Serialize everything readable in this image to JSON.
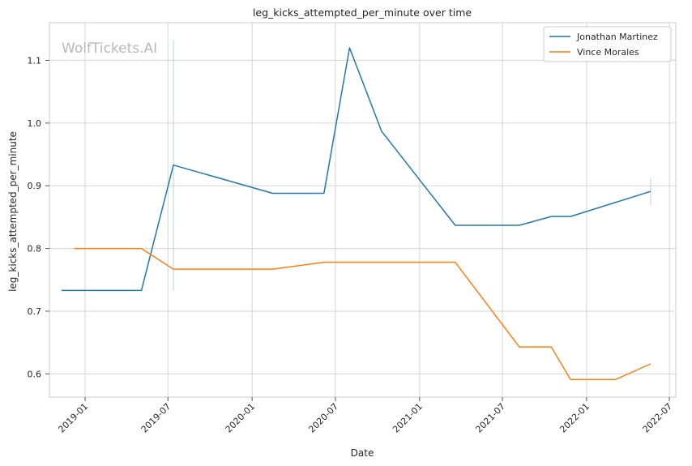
{
  "watermark": "WolfTickets.AI",
  "chart_data": {
    "type": "line",
    "title": "leg_kicks_attempted_per_minute over time",
    "xlabel": "Date",
    "ylabel": "leg_kicks_attempted_per_minute",
    "x_ticks": [
      "2019-01",
      "2019-07",
      "2020-01",
      "2020-07",
      "2021-01",
      "2021-07",
      "2022-01",
      "2022-07"
    ],
    "y_ticks": [
      0.6,
      0.7,
      0.8,
      0.9,
      1.0,
      1.1
    ],
    "xlim": [
      "2018-10-15",
      "2022-07-15"
    ],
    "ylim": [
      0.563,
      1.16
    ],
    "grid": true,
    "legend": "top-right",
    "series": [
      {
        "name": "Jonathan Martinez",
        "color": "#1f77b4",
        "points": [
          {
            "x": "2018-11-10",
            "y": 0.733
          },
          {
            "x": "2019-05-04",
            "y": 0.733
          },
          {
            "x": "2019-07-13",
            "y": 0.933
          },
          {
            "x": "2020-02-15",
            "y": 0.888
          },
          {
            "x": "2020-06-06",
            "y": 0.888
          },
          {
            "x": "2020-08-01",
            "y": 1.12
          },
          {
            "x": "2020-10-10",
            "y": 0.987
          },
          {
            "x": "2021-03-20",
            "y": 0.837
          },
          {
            "x": "2021-08-07",
            "y": 0.837
          },
          {
            "x": "2021-10-16",
            "y": 0.851
          },
          {
            "x": "2021-11-27",
            "y": 0.851
          },
          {
            "x": "2022-05-21",
            "y": 0.891
          }
        ]
      },
      {
        "name": "Vince Morales",
        "color": "#ff7f0e",
        "points": [
          {
            "x": "2018-12-08",
            "y": 0.8
          },
          {
            "x": "2019-05-04",
            "y": 0.8
          },
          {
            "x": "2019-07-13",
            "y": 0.767
          },
          {
            "x": "2020-02-15",
            "y": 0.767
          },
          {
            "x": "2020-06-06",
            "y": 0.778
          },
          {
            "x": "2021-03-20",
            "y": 0.778
          },
          {
            "x": "2021-08-07",
            "y": 0.643
          },
          {
            "x": "2021-10-16",
            "y": 0.643
          },
          {
            "x": "2021-11-27",
            "y": 0.591
          },
          {
            "x": "2022-03-05",
            "y": 0.591
          },
          {
            "x": "2022-05-21",
            "y": 0.616
          }
        ]
      }
    ]
  }
}
